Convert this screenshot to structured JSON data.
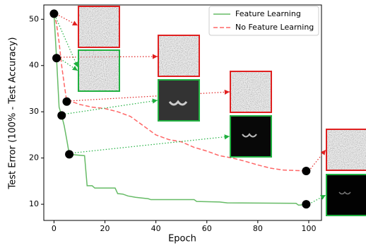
{
  "chart_data": {
    "type": "line",
    "xlabel": "Epoch",
    "ylabel": "Test Error (100% - Test Accuracy)",
    "xlim": [
      -4,
      105
    ],
    "ylim": [
      6.5,
      53.1
    ],
    "xticks": [
      0,
      20,
      40,
      60,
      80,
      100
    ],
    "yticks": [
      10,
      20,
      30,
      40,
      50
    ],
    "grid": false,
    "legend": "upper right",
    "series": [
      {
        "name": "Feature Learning",
        "color": "#66bb66",
        "dash": false,
        "x": [
          0,
          1,
          2,
          3,
          4,
          5,
          6,
          12,
          13,
          15,
          16,
          24,
          25,
          27,
          29,
          32,
          37,
          38,
          55,
          56,
          65,
          68,
          95,
          96,
          100
        ],
        "values": [
          51.2,
          41.6,
          31,
          29.2,
          27,
          24,
          20.8,
          20.5,
          14,
          14,
          13.5,
          13.5,
          12.3,
          12.2,
          11.8,
          11.5,
          11.2,
          11.0,
          11.0,
          10.6,
          10.5,
          10.3,
          10.2,
          9.8,
          10.0
        ]
      },
      {
        "name": "No Feature Learning",
        "color": "#ff6666",
        "dash": true,
        "x": [
          0,
          1,
          2,
          3,
          4,
          5,
          8,
          10,
          15,
          20,
          25,
          30,
          35,
          40,
          45,
          50,
          55,
          60,
          65,
          70,
          75,
          80,
          85,
          90,
          95,
          99
        ],
        "values": [
          51.2,
          49,
          45,
          40,
          36,
          32.2,
          32,
          31.6,
          31,
          30.7,
          30,
          29,
          27,
          25,
          24,
          23.5,
          22.3,
          21.5,
          20.5,
          20,
          19.3,
          18.5,
          17.8,
          17.4,
          17.3,
          17.2
        ]
      }
    ],
    "snapshots": {
      "x": [
        0,
        1,
        5,
        3,
        6,
        99,
        99
      ],
      "y": [
        51.2,
        41.6,
        32.2,
        29.2,
        20.8,
        17.2,
        10.0
      ]
    }
  }
}
